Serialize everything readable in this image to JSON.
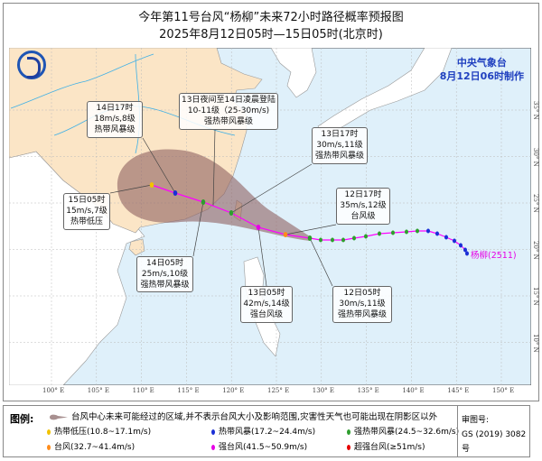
{
  "title": {
    "line1": "今年第11号台风“杨柳”未来72小时路径概率预报图",
    "line2": "2025年8月12日05时—15日05时(北京时)"
  },
  "agency": {
    "name": "中央气象台",
    "made": "8月12日06时制作"
  },
  "logo": "cma-logo",
  "typhoon_label": "杨柳(2511)",
  "lon_ticks": [
    "100° E",
    "105° E",
    "110° E",
    "115° E",
    "120° E",
    "125° E",
    "130° E",
    "135° E",
    "140° E",
    "145° E",
    "150° E"
  ],
  "lat_ticks": [
    "35° N",
    "30° N",
    "25° N",
    "20° N",
    "15° N",
    "10° N"
  ],
  "forecast_points": [
    {
      "time": "12日05时",
      "wind": "30m/s,11级",
      "level": "强热带风暴级",
      "color": "#2e9e2e"
    },
    {
      "time": "12日17时",
      "wind": "35m/s,12级",
      "level": "台风级",
      "color": "#ff8c1a"
    },
    {
      "time": "13日05时",
      "wind": "42m/s,14级",
      "level": "强台风级",
      "color": "#e600e6"
    },
    {
      "time": "13日17时",
      "wind": "30m/s,11级",
      "level": "强热带风暴级",
      "color": "#2e9e2e"
    },
    {
      "time": "14日05时",
      "wind": "25m/s,10级",
      "level": "强热带风暴级",
      "color": "#2e9e2e"
    },
    {
      "time": "14日17时",
      "wind": "18m/s,8级",
      "level": "热带风暴级",
      "color": "#1a2fd6"
    },
    {
      "time": "15日05时",
      "wind": "15m/s,7级",
      "level": "热带低压",
      "color": "#f2c200"
    }
  ],
  "landfall": {
    "line1": "13日夜间至14日凌晨登陆",
    "line2": "10-11级（25-30m/s)",
    "line3": "强热带风暴级"
  },
  "legend": {
    "header": "图例:",
    "cone_desc": "台风中心未来可能经过的区域,并不表示台风大小及影响范围,灾害性天气也可能出现在阴影区以外",
    "items": [
      {
        "label": "热带低压(10.8~17.1m/s)",
        "color": "#f2c200"
      },
      {
        "label": "热带风暴(17.2~24.4m/s)",
        "color": "#1a2fd6"
      },
      {
        "label": "强热带风暴(24.5~32.6m/s)",
        "color": "#2e9e2e"
      },
      {
        "label": "台风(32.7~41.4m/s)",
        "color": "#ff8c1a"
      },
      {
        "label": "强台风(41.5~50.9m/s)",
        "color": "#e600e6"
      },
      {
        "label": "超强台风(≥51m/s)",
        "color": "#e60000"
      }
    ],
    "review_label": "审图号:",
    "review_no": "GS (2019) 3082号"
  },
  "colors": {
    "land_china": "#fbe5c6",
    "sea": "#dff0fa",
    "cone": "#8f6060",
    "track": "#ff00ff",
    "river": "#3fb0e6"
  }
}
